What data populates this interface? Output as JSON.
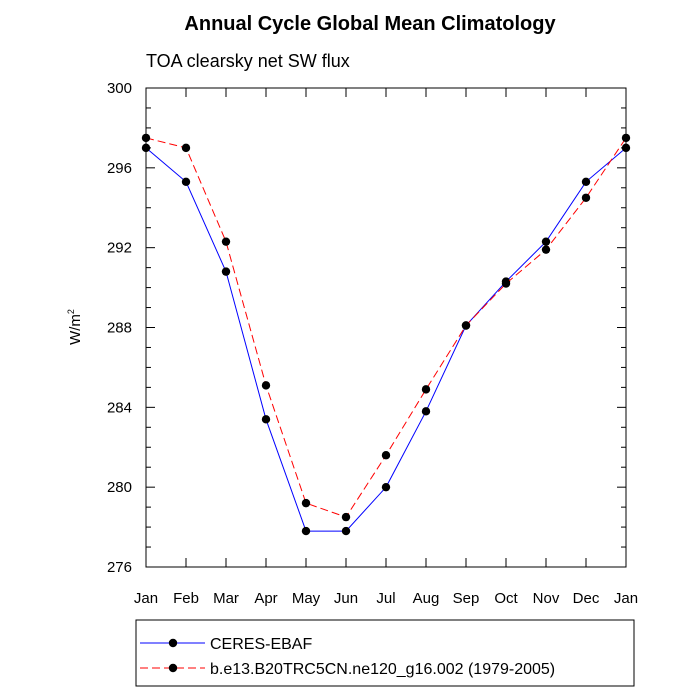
{
  "chart_data": {
    "type": "line",
    "title": "Annual Cycle Global Mean Climatology",
    "subtitle": "TOA clearsky net SW flux",
    "ylabel": "W/m",
    "ylabel_sup": "2",
    "ylim": [
      276,
      300
    ],
    "yticks": [
      "300",
      "296",
      "292",
      "288",
      "284",
      "280",
      "276"
    ],
    "categories": [
      "Jan",
      "Feb",
      "Mar",
      "Apr",
      "May",
      "Jun",
      "Jul",
      "Aug",
      "Sep",
      "Oct",
      "Nov",
      "Dec",
      "Jan"
    ],
    "series": [
      {
        "name": "CERES-EBAF",
        "color": "#0000ff",
        "dash": "solid",
        "values": [
          297.0,
          295.3,
          290.8,
          283.4,
          277.8,
          277.8,
          280.0,
          283.8,
          288.1,
          290.3,
          292.3,
          295.3,
          297.0
        ]
      },
      {
        "name": "b.e13.B20TRC5CN.ne120_g16.002 (1979-2005)",
        "color": "#ff0000",
        "dash": "dashed",
        "values": [
          297.5,
          297.0,
          292.3,
          285.1,
          279.2,
          278.5,
          281.6,
          284.9,
          288.1,
          290.2,
          291.9,
          294.5,
          297.5
        ]
      }
    ],
    "legend_position": "bottom",
    "grid": false
  }
}
